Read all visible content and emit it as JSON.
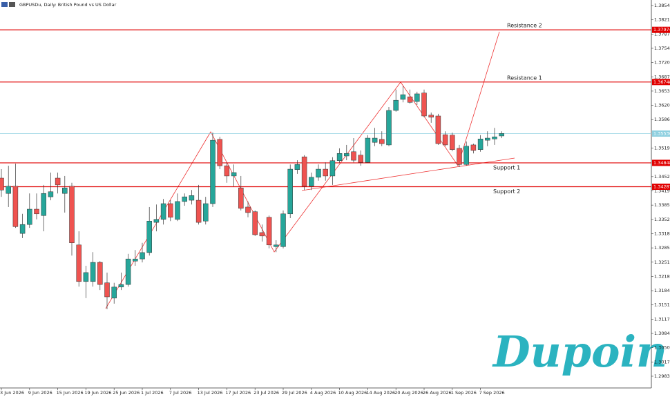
{
  "chart_data": {
    "type": "candlestick",
    "title": "GBPUSDu, Daily: British Pound vs US Dollar",
    "categories": [
      "3 Jun 2026",
      null,
      null,
      null,
      "9 Jun 2026",
      null,
      null,
      null,
      "15 Jun 2026",
      null,
      null,
      null,
      "19 Jun 2026",
      null,
      null,
      null,
      "25 Jun 2026",
      null,
      null,
      null,
      "1 Jul 2026",
      null,
      null,
      null,
      "7 Jul 2026",
      null,
      null,
      null,
      "13 Jul 2026",
      null,
      null,
      null,
      "17 Jul 2026",
      null,
      null,
      null,
      "23 Jul 2026",
      null,
      null,
      null,
      "29 Jul 2026",
      null,
      null,
      null,
      "4 Aug 2026",
      null,
      null,
      null,
      "10 Aug 2026",
      null,
      null,
      null,
      "14 Aug 2026",
      null,
      null,
      null,
      "20 Aug 2026",
      null,
      null,
      null,
      "26 Aug 2026",
      null,
      null,
      null,
      "1 Sep 2026",
      null,
      null,
      null,
      "7 Sep 2026",
      null,
      null,
      null
    ],
    "open": [
      1.3449,
      1.3413,
      1.343,
      1.3319,
      1.334,
      1.3376,
      1.3361,
      1.3405,
      1.3449,
      1.3413,
      1.343,
      1.3292,
      1.3206,
      1.3206,
      1.3251,
      1.3203,
      1.3167,
      1.3193,
      1.3199,
      1.3254,
      1.3259,
      1.3274,
      1.3345,
      1.3352,
      1.3389,
      1.3352,
      1.3394,
      1.3397,
      1.3397,
      1.3348,
      1.3389,
      1.354,
      1.3478,
      1.3454,
      1.3426,
      1.3381,
      1.337,
      1.3321,
      1.3357,
      1.3288,
      1.3288,
      1.3365,
      1.3469,
      1.3499,
      1.343,
      1.3451,
      1.347,
      1.3454,
      1.349,
      1.3501,
      1.3511,
      1.3503,
      1.3486,
      1.3533,
      1.354,
      1.3527,
      1.3608,
      1.3634,
      1.364,
      1.3629,
      1.3649,
      1.3597,
      1.3595,
      1.3551,
      1.355,
      1.3519,
      1.3481,
      1.3527,
      1.3516,
      1.3538,
      1.3541,
      1.3548
    ],
    "high": [
      1.347,
      1.3478,
      1.3483,
      1.3365,
      1.3413,
      1.3413,
      1.3433,
      1.3462,
      1.3462,
      1.3454,
      1.3438,
      1.3324,
      1.3243,
      1.3275,
      1.3254,
      1.3227,
      1.3203,
      1.3227,
      1.3271,
      1.328,
      1.3297,
      1.3381,
      1.3387,
      1.34,
      1.3397,
      1.3413,
      1.3413,
      1.3421,
      1.3433,
      1.3405,
      1.3556,
      1.3546,
      1.3486,
      1.3481,
      1.3454,
      1.3394,
      1.3373,
      1.334,
      1.3361,
      1.3303,
      1.3373,
      1.3481,
      1.3491,
      1.3503,
      1.3462,
      1.3481,
      1.3486,
      1.3498,
      1.3519,
      1.3527,
      1.3543,
      1.3514,
      1.355,
      1.3567,
      1.3559,
      1.3616,
      1.3657,
      1.3665,
      1.3657,
      1.3652,
      1.3657,
      1.3603,
      1.36,
      1.3559,
      1.3556,
      1.3527,
      1.3535,
      1.353,
      1.355,
      1.3559,
      1.3567,
      1.3559
    ],
    "low": [
      1.3405,
      1.3381,
      1.3332,
      1.3308,
      1.3332,
      1.3352,
      1.3324,
      1.3397,
      1.3413,
      1.3368,
      1.3267,
      1.3194,
      1.3167,
      1.3194,
      1.3186,
      1.3141,
      1.3154,
      1.3186,
      1.3194,
      1.3243,
      1.3251,
      1.3267,
      1.3324,
      1.334,
      1.3348,
      1.3348,
      1.3384,
      1.3387,
      1.334,
      1.334,
      1.3381,
      1.347,
      1.3438,
      1.343,
      1.3373,
      1.3357,
      1.3313,
      1.33,
      1.3284,
      1.3275,
      1.3284,
      1.3355,
      1.3459,
      1.3421,
      1.3421,
      1.3443,
      1.3443,
      1.3433,
      1.3485,
      1.3491,
      1.3486,
      1.3478,
      1.3485,
      1.3524,
      1.3524,
      1.3524,
      1.3605,
      1.3627,
      1.3624,
      1.3621,
      1.3592,
      1.3579,
      1.3527,
      1.3524,
      1.3512,
      1.3475,
      1.3478,
      1.3507,
      1.3511,
      1.3524,
      1.3527,
      1.3543
    ],
    "close": [
      1.3421,
      1.343,
      1.3335,
      1.334,
      1.3376,
      1.3365,
      1.3413,
      1.3417,
      1.3433,
      1.3426,
      1.3297,
      1.3206,
      1.3227,
      1.3251,
      1.3199,
      1.317,
      1.3193,
      1.3199,
      1.3259,
      1.3259,
      1.3274,
      1.3348,
      1.3352,
      1.3389,
      1.3357,
      1.3394,
      1.3405,
      1.3408,
      1.3345,
      1.3389,
      1.3538,
      1.3478,
      1.3454,
      1.3462,
      1.3378,
      1.3368,
      1.3316,
      1.3313,
      1.3292,
      1.3292,
      1.3365,
      1.347,
      1.3481,
      1.343,
      1.3451,
      1.347,
      1.3454,
      1.349,
      1.3507,
      1.3507,
      1.3491,
      1.3486,
      1.3543,
      1.3543,
      1.353,
      1.3608,
      1.3632,
      1.3645,
      1.3627,
      1.3647,
      1.3595,
      1.3592,
      1.353,
      1.3527,
      1.3516,
      1.3481,
      1.3524,
      1.3514,
      1.3541,
      1.3543,
      1.3546,
      1.3554
    ],
    "up_color": "#26a69a",
    "down_color": "#ef5350",
    "ylim": [
      1.29559,
      1.38675
    ],
    "yticks": [
      1.38545,
      {
        "value": 1.3821,
        "label": "1.38210"
      },
      1.37875,
      {
        "value": 1.3754,
        "label": "1.37540"
      },
      1.37205,
      {
        "value": 1.3687,
        "label": "1.36870"
      },
      1.36535,
      {
        "value": 1.362,
        "label": "1.36200"
      },
      1.35865,
      1.35195,
      1.34525,
      {
        "value": 1.3419,
        "label": "1.34190"
      },
      1.33855,
      {
        "value": 1.3352,
        "label": "1.33520"
      },
      1.33185,
      {
        "value": 1.3285,
        "label": "1.32850"
      },
      1.32515,
      {
        "value": 1.3218,
        "label": "1.32180"
      },
      1.31845,
      {
        "value": 1.3151,
        "label": "1.31510"
      },
      1.31175,
      {
        "value": 1.3084,
        "label": "1.30840"
      },
      1.30505,
      {
        "value": 1.3017,
        "label": "1.30170"
      },
      1.29835
    ],
    "levels": [
      {
        "name": "Resistance 2",
        "value": 1.37974,
        "color": "#e00000"
      },
      {
        "name": "Resistance 1",
        "value": 1.36748,
        "color": "#e00000"
      },
      {
        "name": "Support 1",
        "value": 1.34848,
        "color": "#e00000"
      },
      {
        "name": "Support 2",
        "value": 1.34287,
        "color": "#e00000"
      }
    ],
    "current_price": {
      "value": 1.35536,
      "color": "#8fd0e0"
    },
    "watermark": "Dupoin"
  }
}
